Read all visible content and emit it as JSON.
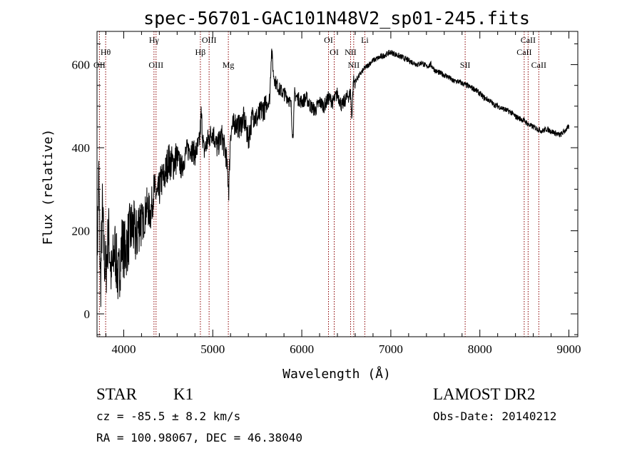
{
  "chart_data": {
    "type": "line",
    "title": "spec-56701-GAC101N48V2_sp01-245.fits",
    "xlabel": "Wavelength (Å)",
    "ylabel": "Flux (relative)",
    "xlim": [
      3700,
      9100
    ],
    "ylim": [
      -55,
      680
    ],
    "xticks": [
      4000,
      5000,
      6000,
      7000,
      8000,
      9000
    ],
    "yticks": [
      0,
      200,
      400,
      600
    ],
    "grid": false,
    "legend": "none",
    "colors": {
      "spectrum": "#000000",
      "lines": "#8b0000",
      "axes": "#000000"
    },
    "series": [
      {
        "x": [
          3700,
          3720,
          3740,
          3760,
          3780,
          3800,
          3830,
          3860,
          3900,
          3940,
          3980,
          4020,
          4060,
          4100,
          4140,
          4180,
          4220,
          4260,
          4300,
          4340,
          4380,
          4420,
          4460,
          4500,
          4550,
          4600,
          4650,
          4700,
          4750,
          4800,
          4850,
          4870,
          4900,
          4950,
          5000,
          5050,
          5100,
          5150,
          5180,
          5200,
          5250,
          5300,
          5350,
          5400,
          5450,
          5500,
          5550,
          5600,
          5640,
          5660,
          5680,
          5700,
          5750,
          5800,
          5850,
          5880,
          5900,
          5920,
          5950,
          6000,
          6050,
          6100,
          6150,
          6200,
          6250,
          6300,
          6350,
          6400,
          6450,
          6500,
          6550,
          6560,
          6580,
          6600,
          6650,
          6700,
          6750,
          6800,
          6850,
          6900,
          6950,
          7000,
          7050,
          7100,
          7150,
          7200,
          7250,
          7300,
          7350,
          7400,
          7450,
          7500,
          7550,
          7600,
          7650,
          7700,
          7750,
          7800,
          7850,
          7900,
          7950,
          8000,
          8050,
          8100,
          8150,
          8200,
          8250,
          8300,
          8350,
          8400,
          8450,
          8500,
          8550,
          8600,
          8650,
          8700,
          8750,
          8800,
          8850,
          8900,
          8950,
          9000
        ],
        "y": [
          120,
          330,
          60,
          250,
          140,
          100,
          200,
          90,
          160,
          80,
          170,
          150,
          190,
          210,
          180,
          230,
          220,
          260,
          240,
          300,
          280,
          320,
          330,
          370,
          360,
          380,
          350,
          390,
          400,
          385,
          410,
          480,
          390,
          420,
          440,
          400,
          430,
          380,
          300,
          440,
          460,
          450,
          470,
          420,
          480,
          470,
          490,
          500,
          520,
          640,
          580,
          560,
          540,
          530,
          520,
          500,
          420,
          530,
          520,
          510,
          520,
          500,
          490,
          510,
          500,
          520,
          510,
          530,
          500,
          520,
          530,
          470,
          560,
          560,
          575,
          590,
          600,
          610,
          615,
          620,
          625,
          630,
          625,
          620,
          615,
          610,
          605,
          600,
          605,
          595,
          600,
          585,
          580,
          575,
          570,
          560,
          560,
          555,
          550,
          545,
          540,
          530,
          520,
          515,
          505,
          500,
          495,
          490,
          485,
          475,
          470,
          465,
          455,
          450,
          445,
          440,
          445,
          440,
          435,
          430,
          440,
          450
        ]
      }
    ],
    "annotations": [
      {
        "x": 3797,
        "label": "Hθ",
        "row": 1
      },
      {
        "x": 3727,
        "label": "OII",
        "row": 2
      },
      {
        "x": 4340,
        "label": "Hγ",
        "row": 0
      },
      {
        "x": 4363,
        "label": "OIII",
        "row": 2
      },
      {
        "x": 4861,
        "label": "Hβ",
        "row": 1
      },
      {
        "x": 4959,
        "label": "OIII",
        "row": 0
      },
      {
        "x": 5175,
        "label": "Mg",
        "row": 2
      },
      {
        "x": 6300,
        "label": "OI",
        "row": 0
      },
      {
        "x": 6364,
        "label": "OI",
        "row": 1
      },
      {
        "x": 6548,
        "label": "NII",
        "row": 1
      },
      {
        "x": 6583,
        "label": "NII",
        "row": 2
      },
      {
        "x": 6708,
        "label": "Li",
        "row": 0
      },
      {
        "x": 7835,
        "label": "SII",
        "row": 2
      },
      {
        "x": 8498,
        "label": "CaII",
        "row": 1
      },
      {
        "x": 8542,
        "label": "CaII",
        "row": 0
      },
      {
        "x": 8662,
        "label": "CaII",
        "row": 2
      }
    ]
  },
  "info": {
    "object_class": "STAR",
    "subclass": "K1",
    "survey": "LAMOST DR2",
    "cz": "cz = -85.5 ± 8.2 km/s",
    "obs_date": "Obs-Date: 20140212",
    "coords": "RA = 100.98067, DEC =  46.38040"
  }
}
